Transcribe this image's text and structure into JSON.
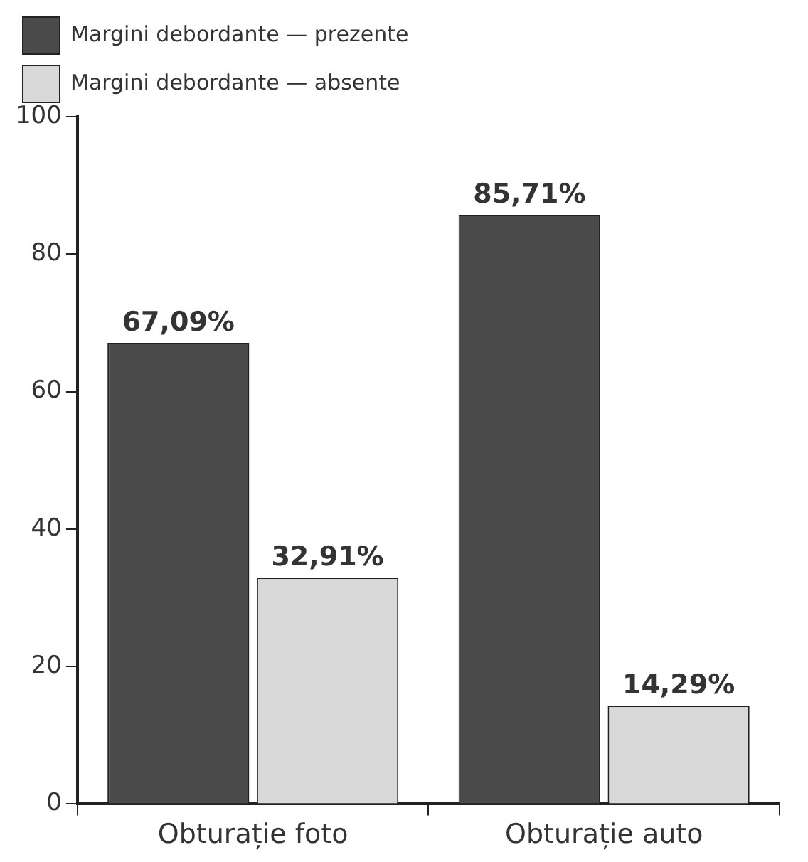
{
  "chart_data": {
    "type": "bar",
    "categories": [
      "Obturație foto",
      "Obturație auto"
    ],
    "series": [
      {
        "name": "Margini debordante — prezente",
        "color": "#4a4a4a",
        "values": [
          67.09,
          85.71
        ],
        "value_labels": [
          "67,09%",
          "85,71%"
        ]
      },
      {
        "name": "Margini debordante — absente",
        "color": "#d9d9d9",
        "values": [
          32.91,
          14.29
        ],
        "value_labels": [
          "32,91%",
          "14,29%"
        ]
      }
    ],
    "ylim": [
      0,
      100
    ],
    "yticks": [
      0,
      20,
      40,
      60,
      80,
      100
    ],
    "grid": false,
    "legend": "top left"
  }
}
